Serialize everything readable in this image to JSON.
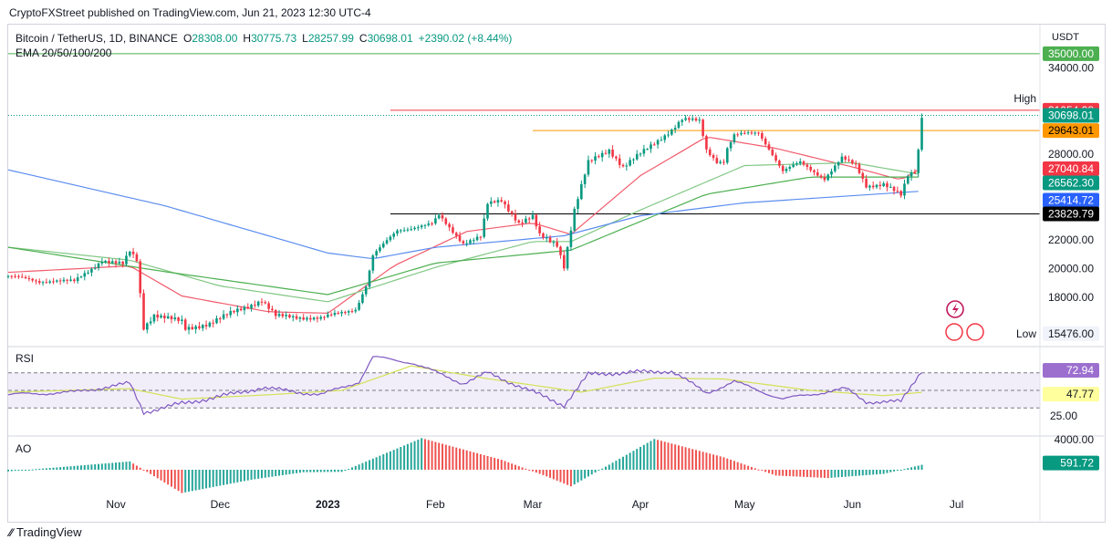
{
  "banner": "CryptoFXStreet published on TradingView.com, Jun 21, 2023 12:30 UTC-4",
  "footer": "TradingView",
  "chart_data": {
    "type": "candlestick",
    "header": {
      "symbol": "Bitcoin / TetherUS, 1D, BINANCE",
      "o_label": "O",
      "o": "28308.00",
      "h_label": "H",
      "h": "30775.73",
      "l_label": "L",
      "l": "28257.99",
      "c_label": "C",
      "c": "30698.01",
      "change": "+2390.02 (+8.44%)",
      "indicator": "EMA 20/50/100/200"
    },
    "currency": "USDT",
    "price_axis_ticks": [
      "34000.00",
      "31000.00",
      "28000.00",
      "22000.00",
      "20000.00",
      "18000.00"
    ],
    "price_range": [
      14700,
      36200
    ],
    "price_labels": [
      {
        "value": "35000.00",
        "bg": "#4caf50",
        "fg": "#ffffff"
      },
      {
        "value": "31054.28",
        "bg": "#f23645",
        "fg": "#ffffff"
      },
      {
        "value": "30698.01",
        "bg": "#089981",
        "fg": "#ffffff"
      },
      {
        "value": "29643.01",
        "bg": "#ff9800",
        "fg": "#000000"
      },
      {
        "value": "27040.84",
        "bg": "#f23645",
        "fg": "#ffffff"
      },
      {
        "value": "26562.30",
        "bg": "#089981",
        "fg": "#ffffff"
      },
      {
        "value": "25414.72",
        "bg": "#2962ff",
        "fg": "#ffffff"
      },
      {
        "value": "23829.79",
        "bg": "#000000",
        "fg": "#ffffff"
      },
      {
        "value": "15476.00",
        "bg": "#f0f3fa",
        "fg": "#131722"
      }
    ],
    "high_label": "High",
    "low_label": "Low",
    "horizontal_levels": [
      {
        "price": 35000,
        "color": "#4caf50",
        "from": "2022-10-01"
      },
      {
        "price": 31054.28,
        "color": "#f23645",
        "from": "2023-01-19"
      },
      {
        "price": 29643.01,
        "color": "#ff9800",
        "from": "2023-03-01"
      },
      {
        "price": 23829.79,
        "color": "#000000",
        "from": "2023-01-19"
      }
    ],
    "x_axis_labels": [
      {
        "label": "Nov",
        "date": "2022-11-01"
      },
      {
        "label": "Dec",
        "date": "2022-12-01"
      },
      {
        "label": "2023",
        "date": "2023-01-01",
        "bold": true
      },
      {
        "label": "Feb",
        "date": "2023-02-01"
      },
      {
        "label": "Mar",
        "date": "2023-03-01"
      },
      {
        "label": "Apr",
        "date": "2023-04-01"
      },
      {
        "label": "May",
        "date": "2023-05-01"
      },
      {
        "label": "Jun",
        "date": "2023-06-01"
      },
      {
        "label": "Jul",
        "date": "2023-07-01"
      }
    ],
    "close_anchors": [
      [
        "2022-10-01",
        19500
      ],
      [
        "2022-10-10",
        19100
      ],
      [
        "2022-10-14",
        19200
      ],
      [
        "2022-10-20",
        19100
      ],
      [
        "2022-10-25",
        20000
      ],
      [
        "2022-10-28",
        20600
      ],
      [
        "2022-11-03",
        20300
      ],
      [
        "2022-11-05",
        21200
      ],
      [
        "2022-11-07",
        20600
      ],
      [
        "2022-11-09",
        15900
      ],
      [
        "2022-11-12",
        16800
      ],
      [
        "2022-11-20",
        16300
      ],
      [
        "2022-11-21",
        15800
      ],
      [
        "2022-11-28",
        16200
      ],
      [
        "2022-12-05",
        17000
      ],
      [
        "2022-12-13",
        17800
      ],
      [
        "2022-12-17",
        16700
      ],
      [
        "2022-12-30",
        16550
      ],
      [
        "2023-01-09",
        17200
      ],
      [
        "2023-01-12",
        18800
      ],
      [
        "2023-01-14",
        20900
      ],
      [
        "2023-01-21",
        22700
      ],
      [
        "2023-01-31",
        23100
      ],
      [
        "2023-02-02",
        23700
      ],
      [
        "2023-02-09",
        21800
      ],
      [
        "2023-02-14",
        22200
      ],
      [
        "2023-02-16",
        24500
      ],
      [
        "2023-02-20",
        24800
      ],
      [
        "2023-02-25",
        23200
      ],
      [
        "2023-03-01",
        23600
      ],
      [
        "2023-03-03",
        22300
      ],
      [
        "2023-03-08",
        21700
      ],
      [
        "2023-03-10",
        20200
      ],
      [
        "2023-03-13",
        24100
      ],
      [
        "2023-03-17",
        27400
      ],
      [
        "2023-03-23",
        28300
      ],
      [
        "2023-03-27",
        27100
      ],
      [
        "2023-04-02",
        28200
      ],
      [
        "2023-04-10",
        29700
      ],
      [
        "2023-04-13",
        30400
      ],
      [
        "2023-04-18",
        30300
      ],
      [
        "2023-04-20",
        28300
      ],
      [
        "2023-04-23",
        27500
      ],
      [
        "2023-04-25",
        27500
      ],
      [
        "2023-04-26",
        28400
      ],
      [
        "2023-04-28",
        29300
      ],
      [
        "2023-05-05",
        29500
      ],
      [
        "2023-05-08",
        28400
      ],
      [
        "2023-05-12",
        26800
      ],
      [
        "2023-05-17",
        27400
      ],
      [
        "2023-05-24",
        26300
      ],
      [
        "2023-05-29",
        27700
      ],
      [
        "2023-06-02",
        27200
      ],
      [
        "2023-06-05",
        25800
      ],
      [
        "2023-06-10",
        25900
      ],
      [
        "2023-06-15",
        25100
      ],
      [
        "2023-06-17",
        26500
      ],
      [
        "2023-06-19",
        26800
      ],
      [
        "2023-06-20",
        28300
      ],
      [
        "2023-06-21",
        30698
      ]
    ],
    "ema_series": [
      {
        "name": "EMA 20",
        "color": "#f15b6c",
        "points": [
          [
            "2022-10-01",
            19750
          ],
          [
            "2022-11-05",
            20200
          ],
          [
            "2022-11-20",
            18100
          ],
          [
            "2022-12-15",
            17000
          ],
          [
            "2023-01-01",
            16900
          ],
          [
            "2023-01-20",
            20200
          ],
          [
            "2023-02-10",
            22600
          ],
          [
            "2023-03-01",
            23200
          ],
          [
            "2023-03-12",
            22400
          ],
          [
            "2023-04-01",
            26500
          ],
          [
            "2023-04-20",
            29200
          ],
          [
            "2023-05-10",
            28400
          ],
          [
            "2023-06-01",
            27100
          ],
          [
            "2023-06-15",
            26200
          ],
          [
            "2023-06-21",
            27040
          ]
        ]
      },
      {
        "name": "EMA 50",
        "color": "#81c784",
        "points": [
          [
            "2022-10-01",
            21500
          ],
          [
            "2022-11-05",
            20600
          ],
          [
            "2022-12-01",
            18800
          ],
          [
            "2023-01-01",
            17700
          ],
          [
            "2023-02-01",
            20100
          ],
          [
            "2023-03-01",
            21900
          ],
          [
            "2023-03-12",
            21900
          ],
          [
            "2023-04-01",
            24100
          ],
          [
            "2023-05-01",
            27200
          ],
          [
            "2023-06-01",
            27400
          ],
          [
            "2023-06-21",
            26560
          ]
        ]
      },
      {
        "name": "EMA 100",
        "color": "#4caf50",
        "points": [
          [
            "2022-10-01",
            21500
          ],
          [
            "2022-11-15",
            19800
          ],
          [
            "2023-01-01",
            18200
          ],
          [
            "2023-02-01",
            20400
          ],
          [
            "2023-03-12",
            21300
          ],
          [
            "2023-04-20",
            25200
          ],
          [
            "2023-05-20",
            26400
          ],
          [
            "2023-06-21",
            26400
          ]
        ]
      },
      {
        "name": "EMA 200",
        "color": "#5b8def",
        "points": [
          [
            "2022-10-01",
            26900
          ],
          [
            "2022-11-15",
            24400
          ],
          [
            "2023-01-01",
            21100
          ],
          [
            "2023-01-14",
            20700
          ],
          [
            "2023-02-01",
            21500
          ],
          [
            "2023-03-10",
            22300
          ],
          [
            "2023-04-01",
            23700
          ],
          [
            "2023-05-01",
            24600
          ],
          [
            "2023-06-21",
            25414
          ]
        ]
      }
    ],
    "rsi": {
      "title": "RSI",
      "value": "72.94",
      "value_bg": "#9c6fcf",
      "ma_value": "47.77",
      "ma_bg": "#ffff9e",
      "tick": "25.00",
      "levels": [
        70,
        50,
        30
      ],
      "line_color": "#7e57c2",
      "ma_color": "#d4e157",
      "anchors": [
        [
          "2022-10-01",
          45
        ],
        [
          "2022-10-20",
          48
        ],
        [
          "2022-11-05",
          58
        ],
        [
          "2022-11-09",
          25
        ],
        [
          "2022-11-20",
          35
        ],
        [
          "2022-12-01",
          43
        ],
        [
          "2022-12-13",
          53
        ],
        [
          "2022-12-30",
          45
        ],
        [
          "2023-01-10",
          60
        ],
        [
          "2023-01-14",
          88
        ],
        [
          "2023-01-25",
          82
        ],
        [
          "2023-02-09",
          58
        ],
        [
          "2023-02-16",
          70
        ],
        [
          "2023-02-25",
          55
        ],
        [
          "2023-03-10",
          33
        ],
        [
          "2023-03-17",
          68
        ],
        [
          "2023-03-25",
          70
        ],
        [
          "2023-04-10",
          72
        ],
        [
          "2023-04-20",
          47
        ],
        [
          "2023-04-28",
          60
        ],
        [
          "2023-05-12",
          40
        ],
        [
          "2023-05-30",
          52
        ],
        [
          "2023-06-05",
          37
        ],
        [
          "2023-06-15",
          37
        ],
        [
          "2023-06-21",
          72.94
        ]
      ],
      "ma_anchors": [
        [
          "2022-10-01",
          48
        ],
        [
          "2022-11-05",
          52
        ],
        [
          "2022-11-20",
          40
        ],
        [
          "2022-12-15",
          45
        ],
        [
          "2023-01-05",
          50
        ],
        [
          "2023-01-25",
          78
        ],
        [
          "2023-02-15",
          64
        ],
        [
          "2023-03-15",
          48
        ],
        [
          "2023-04-05",
          64
        ],
        [
          "2023-04-25",
          63
        ],
        [
          "2023-05-20",
          50
        ],
        [
          "2023-06-10",
          44
        ],
        [
          "2023-06-21",
          47.77
        ]
      ]
    },
    "ao": {
      "title": "AO",
      "value": "591.72",
      "value_bg": "#089981",
      "tick": "4000.00",
      "up_color": "#26a69a",
      "down_color": "#ef5350",
      "anchors": [
        [
          "2022-10-01",
          -200
        ],
        [
          "2022-11-05",
          1000
        ],
        [
          "2022-11-20",
          -2800
        ],
        [
          "2022-12-10",
          -1200
        ],
        [
          "2022-12-25",
          -300
        ],
        [
          "2023-01-05",
          -250
        ],
        [
          "2023-01-28",
          3800
        ],
        [
          "2023-02-20",
          1200
        ],
        [
          "2023-03-05",
          -800
        ],
        [
          "2023-03-12",
          -2000
        ],
        [
          "2023-04-05",
          3700
        ],
        [
          "2023-04-25",
          1500
        ],
        [
          "2023-05-10",
          -700
        ],
        [
          "2023-05-25",
          -1000
        ],
        [
          "2023-06-10",
          -500
        ],
        [
          "2023-06-21",
          591.72
        ]
      ]
    },
    "grid": false
  }
}
